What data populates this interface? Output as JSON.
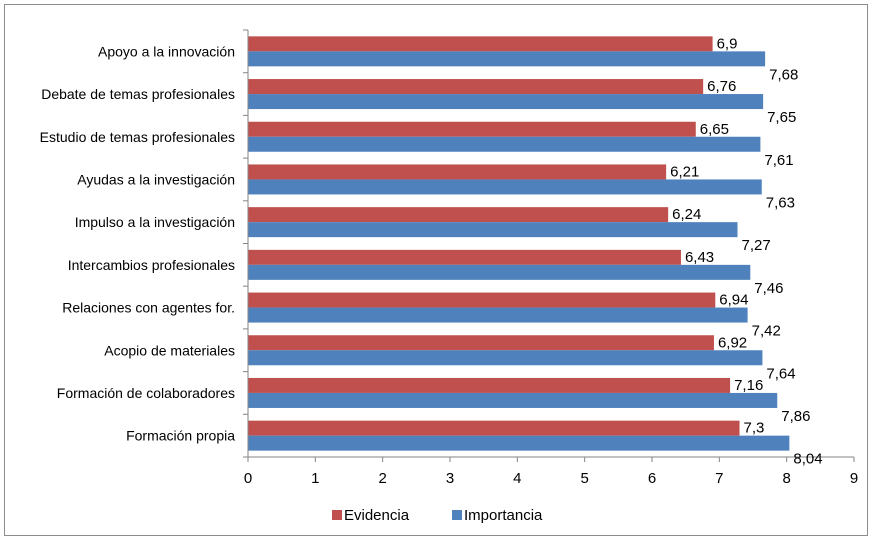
{
  "chart_data": {
    "type": "bar",
    "orientation": "horizontal",
    "title": "",
    "xlabel": "",
    "ylabel": "",
    "xlim": [
      0,
      9
    ],
    "x_ticks": [
      "0",
      "1",
      "2",
      "3",
      "4",
      "5",
      "6",
      "7",
      "8",
      "9"
    ],
    "grid": false,
    "legend_position": "bottom",
    "categories": [
      "Apoyo a la innovación",
      "Debate de temas profesionales",
      "Estudio de temas profesionales",
      "Ayudas a la investigación",
      "Impulso a la investigación",
      "Intercambios profesionales",
      "Relaciones con agentes for.",
      "Acopio de materiales",
      "Formación de colaboradores",
      "Formación propia"
    ],
    "series": [
      {
        "name": "Evidencia",
        "color": "#C0504D",
        "values": [
          6.9,
          6.76,
          6.65,
          6.21,
          6.24,
          6.43,
          6.94,
          6.92,
          7.16,
          7.3
        ],
        "labels": [
          "6,9",
          "6,76",
          "6,65",
          "6,21",
          "6,24",
          "6,43",
          "6,94",
          "6,92",
          "7,16",
          "7,3"
        ]
      },
      {
        "name": "Importancia",
        "color": "#4F81BD",
        "values": [
          7.68,
          7.65,
          7.61,
          7.63,
          7.27,
          7.46,
          7.42,
          7.64,
          7.86,
          8.04
        ],
        "labels": [
          "7,68",
          "7,65",
          "7,61",
          "7,63",
          "7,27",
          "7,46",
          "7,42",
          "7,64",
          "7,86",
          "8,04"
        ]
      }
    ]
  }
}
